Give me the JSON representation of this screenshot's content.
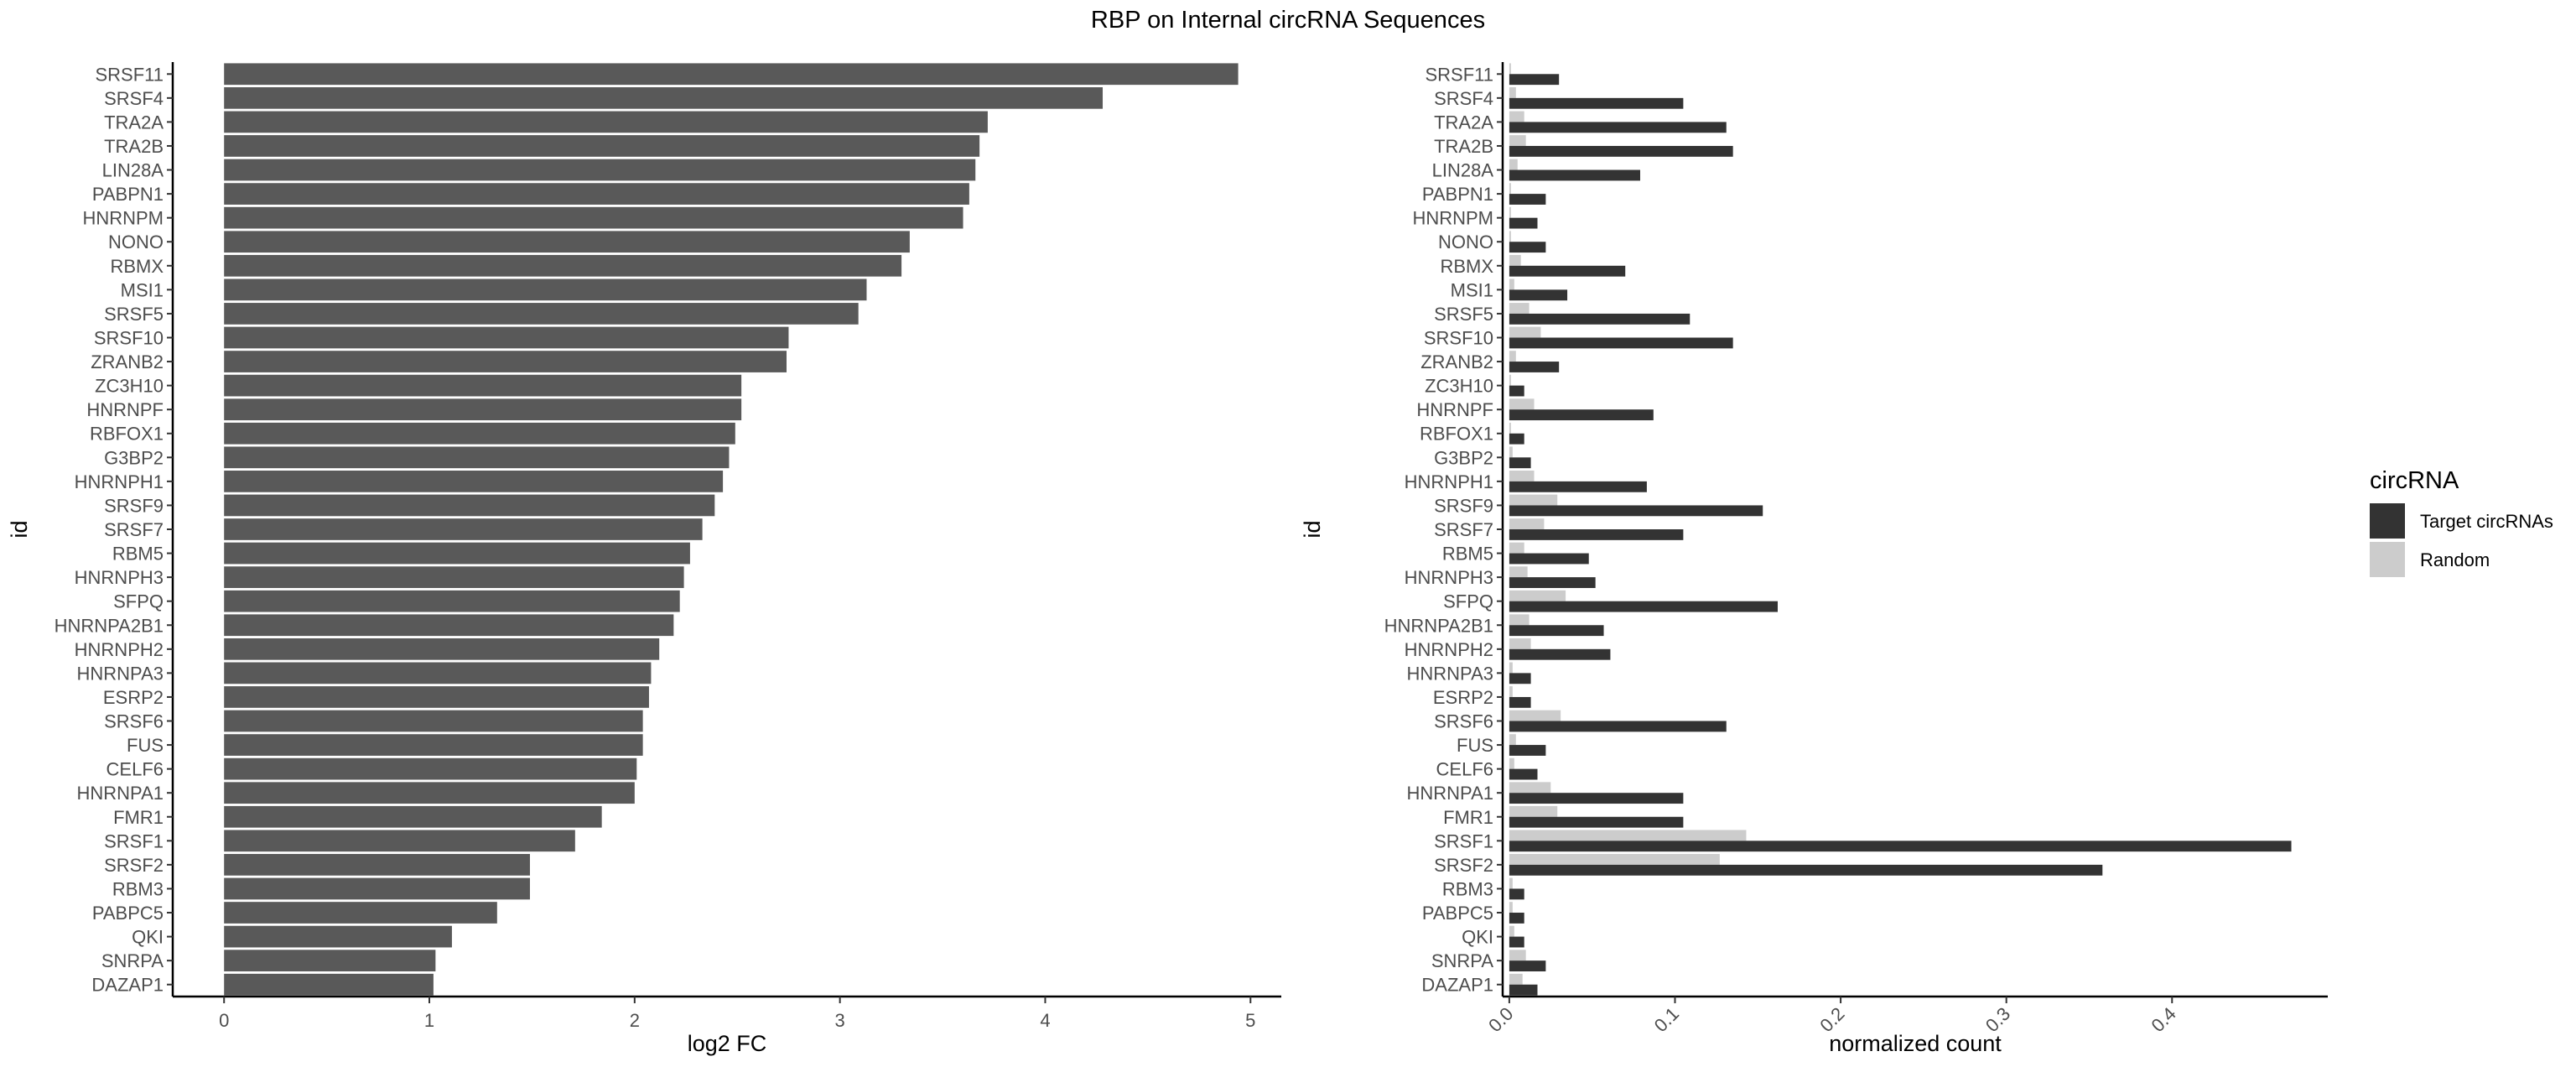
{
  "title": "RBP on Internal circRNA Sequences",
  "chart_data": [
    {
      "type": "bar",
      "orientation": "horizontal",
      "categories": [
        "SRSF11",
        "SRSF4",
        "TRA2A",
        "TRA2B",
        "LIN28A",
        "PABPN1",
        "HNRNPM",
        "NONO",
        "RBMX",
        "MSI1",
        "SRSF5",
        "SRSF10",
        "ZRANB2",
        "ZC3H10",
        "HNRNPF",
        "RBFOX1",
        "G3BP2",
        "HNRNPH1",
        "SRSF9",
        "SRSF7",
        "RBM5",
        "HNRNPH3",
        "SFPQ",
        "HNRNPA2B1",
        "HNRNPH2",
        "HNRNPA3",
        "ESRP2",
        "SRSF6",
        "FUS",
        "CELF6",
        "HNRNPA1",
        "FMR1",
        "SRSF1",
        "SRSF2",
        "RBM3",
        "PABPC5",
        "QKI",
        "SNRPA",
        "DAZAP1"
      ],
      "values": [
        4.94,
        4.28,
        3.72,
        3.68,
        3.66,
        3.63,
        3.6,
        3.34,
        3.3,
        3.13,
        3.09,
        2.75,
        2.74,
        2.52,
        2.52,
        2.49,
        2.46,
        2.43,
        2.39,
        2.33,
        2.27,
        2.24,
        2.22,
        2.19,
        2.12,
        2.08,
        2.07,
        2.04,
        2.04,
        2.01,
        2.0,
        1.84,
        1.71,
        1.49,
        1.49,
        1.33,
        1.11,
        1.03,
        1.02
      ],
      "xlabel": "log2 FC",
      "ylabel": "id",
      "xlim": [
        -0.25,
        5.15
      ],
      "xticks": [
        0,
        1,
        2,
        3,
        4,
        5
      ],
      "bar_color": "#595959",
      "grid": false
    },
    {
      "type": "bar",
      "orientation": "horizontal",
      "grouped": true,
      "categories": [
        "SRSF11",
        "SRSF4",
        "TRA2A",
        "TRA2B",
        "LIN28A",
        "PABPN1",
        "HNRNPM",
        "NONO",
        "RBMX",
        "MSI1",
        "SRSF5",
        "SRSF10",
        "ZRANB2",
        "ZC3H10",
        "HNRNPF",
        "RBFOX1",
        "G3BP2",
        "HNRNPH1",
        "SRSF9",
        "SRSF7",
        "RBM5",
        "HNRNPH3",
        "SFPQ",
        "HNRNPA2B1",
        "HNRNPH2",
        "HNRNPA3",
        "ESRP2",
        "SRSF6",
        "FUS",
        "CELF6",
        "HNRNPA1",
        "FMR1",
        "SRSF1",
        "SRSF2",
        "RBM3",
        "PABPC5",
        "QKI",
        "SNRPA",
        "DAZAP1"
      ],
      "series": [
        {
          "name": "Target circRNAs",
          "color": "#333333",
          "values": [
            0.03,
            0.105,
            0.131,
            0.135,
            0.079,
            0.022,
            0.017,
            0.022,
            0.07,
            0.035,
            0.109,
            0.135,
            0.03,
            0.009,
            0.087,
            0.009,
            0.013,
            0.083,
            0.153,
            0.105,
            0.048,
            0.052,
            0.162,
            0.057,
            0.061,
            0.013,
            0.013,
            0.131,
            0.022,
            0.017,
            0.105,
            0.105,
            0.472,
            0.358,
            0.009,
            0.009,
            0.009,
            0.022,
            0.017
          ]
        },
        {
          "name": "Random",
          "color": "#cccccc",
          "values": [
            0.001,
            0.004,
            0.009,
            0.01,
            0.005,
            0.001,
            0.001,
            0.001,
            0.007,
            0.003,
            0.012,
            0.019,
            0.004,
            0.001,
            0.015,
            0.001,
            0.002,
            0.015,
            0.029,
            0.021,
            0.009,
            0.011,
            0.034,
            0.012,
            0.013,
            0.002,
            0.002,
            0.031,
            0.004,
            0.003,
            0.025,
            0.029,
            0.143,
            0.127,
            0.002,
            0.002,
            0.003,
            0.01,
            0.008
          ]
        }
      ],
      "xlabel": "normalized count",
      "ylabel": "id",
      "xlim": [
        -0.004,
        0.494
      ],
      "xticks": [
        0.0,
        0.1,
        0.2,
        0.3,
        0.4
      ],
      "xtick_labels": [
        "0.0",
        "0.1",
        "0.2",
        "0.3",
        "0.4"
      ],
      "legend": {
        "title": "circRNA",
        "position": "right",
        "entries": [
          "Target circRNAs",
          "Random"
        ]
      },
      "grid": false
    }
  ]
}
